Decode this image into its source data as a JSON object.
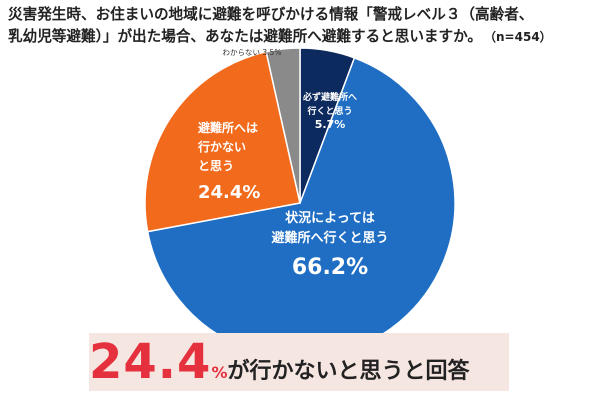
{
  "title": {
    "line1": "災害発生時、お住まいの地域に避難を呼びかける情報「警戒レベル３（高齢者、",
    "line2": "乳幼児等避難）」が出た場合、あなたは避難所へ避難すると思いますか。",
    "n": "（n=454）"
  },
  "chart_data": {
    "type": "pie",
    "slices": [
      {
        "label": [
          "必ず避難所へ",
          "行くと思う"
        ],
        "value": 5.7,
        "value_text": "5.7%",
        "color": "#0d2a5e",
        "text_color": "#ffffff"
      },
      {
        "label": [
          "状況によっては",
          "避難所へ行くと思う"
        ],
        "value": 66.2,
        "value_text": "66.2%",
        "color": "#1f6ec3",
        "text_color": "#ffffff"
      },
      {
        "label": [
          "避難所へは",
          "行かない",
          "と思う"
        ],
        "value": 24.4,
        "value_text": "24.4%",
        "color": "#f26b1d",
        "text_color": "#ffffff"
      },
      {
        "label": [
          "わからない 3.5%"
        ],
        "value": 3.5,
        "value_text": "",
        "color": "#8a8a8a",
        "text_color": "#333333"
      }
    ]
  },
  "callout": {
    "big": "24.4",
    "pct": "%",
    "text": "が行かないと思うと回答"
  }
}
